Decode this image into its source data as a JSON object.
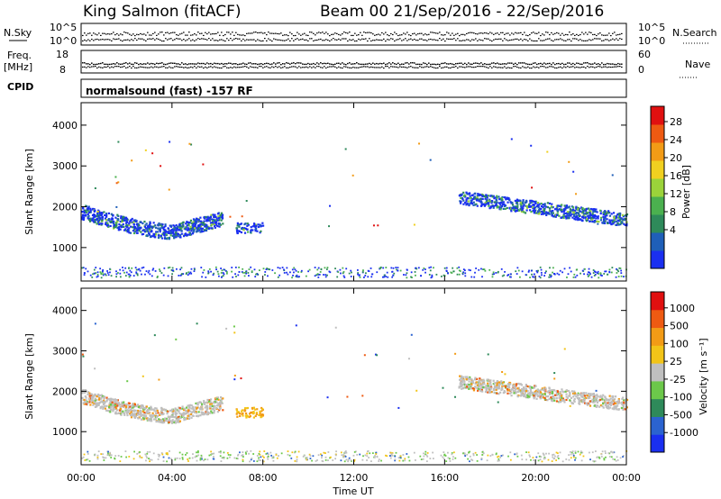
{
  "header": {
    "station": "King Salmon (fitACF)",
    "beam_dates": "Beam 00  21/Sep/2016 - 22/Sep/2016"
  },
  "status": {
    "nsky_label": "N.Sky",
    "nsearch_label": "N.Search",
    "nsky_ticks": [
      "10^5",
      "10^0"
    ],
    "nsearch_ticks": [
      "10^5",
      "10^0"
    ],
    "freq_label_1": "Freq.",
    "freq_label_2": "[MHz]",
    "freq_ticks": [
      "18",
      "8"
    ],
    "nave_label": "Nave",
    "nave_ticks": [
      "60",
      "0"
    ],
    "cpid_label": "CPID",
    "mode_text": "normalsound (fast) -157 RF"
  },
  "colors": {
    "low": "#1f2fd8",
    "mid": "#2aa02a",
    "high": "#e61010",
    "ground": "#bdbdbd"
  },
  "chart_data": [
    {
      "type": "heatmap",
      "name": "power",
      "ylabel": "Slant Range [km]",
      "xlabel": "Time UT",
      "xlim": [
        0,
        24
      ],
      "ylim": [
        180,
        4550
      ],
      "x_ticks": [
        "00:00",
        "04:00",
        "08:00",
        "12:00",
        "16:00",
        "20:00",
        "00:00"
      ],
      "y_ticks": [
        1000,
        2000,
        3000,
        4000
      ],
      "colorbar": {
        "label": "Power [dB]",
        "ticks": [
          "28",
          "24",
          "20",
          "16",
          "12",
          "8",
          "4"
        ],
        "colors": [
          "#1a2ff0",
          "#1f5fb8",
          "#2e8a5a",
          "#4bb04f",
          "#9bd33a",
          "#f0d020",
          "#f29b16",
          "#ee5a12",
          "#e01010"
        ]
      }
    },
    {
      "type": "heatmap",
      "name": "velocity",
      "ylabel": "Slant Range [km]",
      "xlabel": "Time UT",
      "xlim": [
        0,
        24
      ],
      "ylim": [
        180,
        4550
      ],
      "x_ticks": [
        "00:00",
        "04:00",
        "08:00",
        "12:00",
        "16:00",
        "20:00",
        "00:00"
      ],
      "y_ticks": [
        1000,
        2000,
        3000,
        4000
      ],
      "colorbar": {
        "label": "Velocity [m s⁻¹]",
        "ticks": [
          "1000",
          "500",
          "100",
          "25",
          "-25",
          "-100",
          "-500",
          "-1000"
        ],
        "colors": [
          "#1a2ff0",
          "#2b63d0",
          "#2e8a5a",
          "#6cc84a",
          "#bfbfbf",
          "#f2c418",
          "#f29b16",
          "#ee5a12",
          "#e01010"
        ]
      }
    }
  ]
}
